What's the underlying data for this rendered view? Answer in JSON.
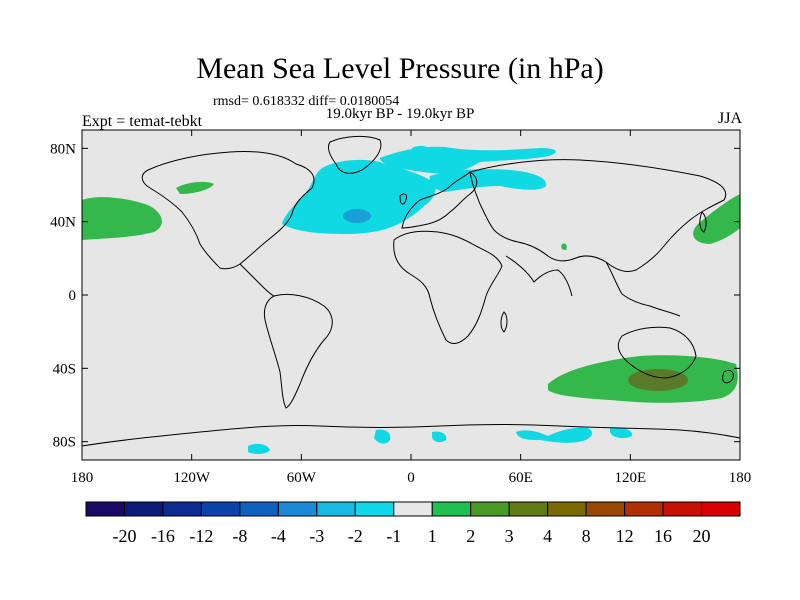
{
  "chart_data": {
    "type": "heatmap",
    "title": "Mean Sea Level Pressure (in hPa)",
    "stats_text": "rmsd= 0.618332 diff= 0.0180054",
    "period": "19.0kyr BP - 19.0kyr BP",
    "experiment": "Expt = temat-tebkt",
    "season": "JJA",
    "x_ticks": [
      "180",
      "120W",
      "60W",
      "0",
      "60E",
      "120E",
      "180"
    ],
    "y_ticks": [
      "80N",
      "40N",
      "0",
      "40S",
      "80S"
    ],
    "colorbar": {
      "labels": [
        "-20",
        "-16",
        "-12",
        "-8",
        "-4",
        "-3",
        "-2",
        "-1",
        "1",
        "2",
        "3",
        "4",
        "8",
        "12",
        "16",
        "20"
      ],
      "colors": [
        "#1a0a66",
        "#0e1a7a",
        "#0c2c92",
        "#0a44aa",
        "#1060c0",
        "#1a8ad6",
        "#18b8e2",
        "#10d8e8",
        "#e8e8e8",
        "#20c050",
        "#4a9a28",
        "#607a14",
        "#7a6a00",
        "#9a4a00",
        "#b03000",
        "#c61000",
        "#d80000"
      ]
    },
    "colors": {
      "background": "#e6e6e6",
      "negative": "#11d9e3",
      "negative_strong": "#1aa0d8",
      "positive": "#34b84c",
      "positive_strong": "#5a7a2a"
    }
  }
}
